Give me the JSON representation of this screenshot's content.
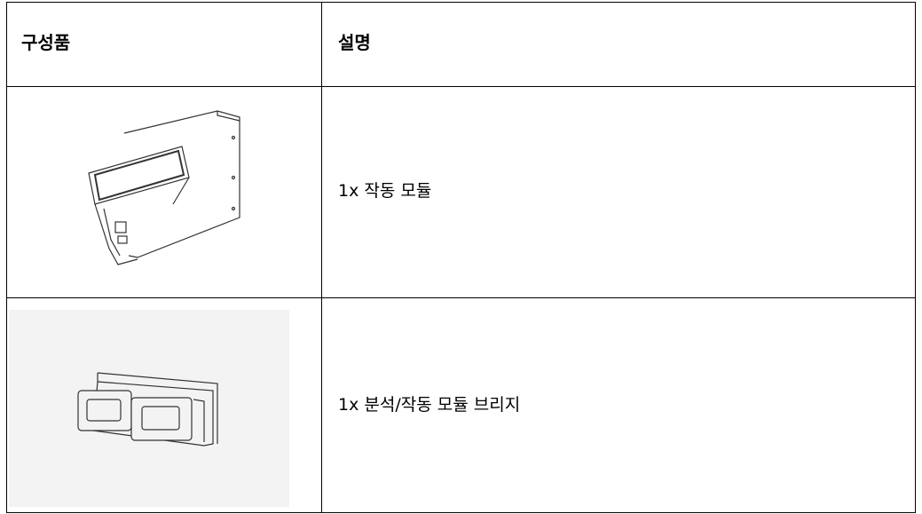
{
  "table": {
    "header": [
      "구성품",
      "설명"
    ],
    "rows": [
      {
        "description": "1x 작동 모듈"
      },
      {
        "description": "1x 분석/작동 모듈 브리지"
      }
    ]
  }
}
